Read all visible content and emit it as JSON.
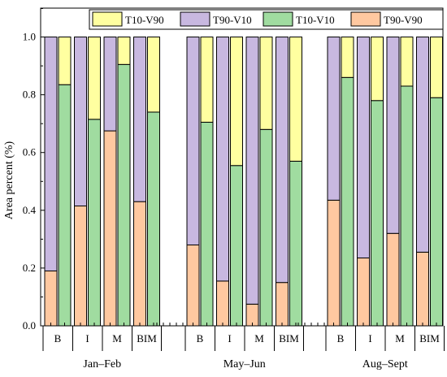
{
  "chart_data": {
    "type": "bar",
    "stacked": true,
    "title": "",
    "xlabel": "",
    "ylabel": "Area percent (%)",
    "ylim": [
      0,
      1.1
    ],
    "yticks": [
      "0.0",
      "0.2",
      "0.4",
      "0.6",
      "0.8",
      "1.0"
    ],
    "grid": false,
    "legend_position": "top",
    "legend": [
      {
        "name": "T10-V90",
        "color": "#FFFFA0"
      },
      {
        "name": "T90-V10",
        "color": "#C8B8E0"
      },
      {
        "name": "T10-V10",
        "color": "#A0DCA0"
      },
      {
        "name": "T90-V90",
        "color": "#FFC8A0"
      }
    ],
    "groups": [
      {
        "label": "Jan–Feb",
        "categories": [
          "B",
          "I",
          "M",
          "BIM"
        ],
        "pairs": [
          {
            "t90v90": 0.19,
            "t10v10": 0.835
          },
          {
            "t90v90": 0.415,
            "t10v10": 0.715
          },
          {
            "t90v90": 0.675,
            "t10v10": 0.905
          },
          {
            "t90v90": 0.43,
            "t10v10": 0.74
          }
        ]
      },
      {
        "label": "May–Jun",
        "categories": [
          "B",
          "I",
          "M",
          "BIM"
        ],
        "pairs": [
          {
            "t90v90": 0.28,
            "t10v10": 0.705
          },
          {
            "t90v90": 0.155,
            "t10v10": 0.555
          },
          {
            "t90v90": 0.075,
            "t10v10": 0.68
          },
          {
            "t90v90": 0.15,
            "t10v10": 0.57
          }
        ]
      },
      {
        "label": "Aug–Sept",
        "categories": [
          "B",
          "I",
          "M",
          "BIM"
        ],
        "pairs": [
          {
            "t90v90": 0.435,
            "t10v10": 0.86
          },
          {
            "t90v90": 0.235,
            "t10v10": 0.78
          },
          {
            "t90v90": 0.32,
            "t10v10": 0.83
          },
          {
            "t90v90": 0.255,
            "t10v10": 0.79
          }
        ]
      }
    ]
  }
}
